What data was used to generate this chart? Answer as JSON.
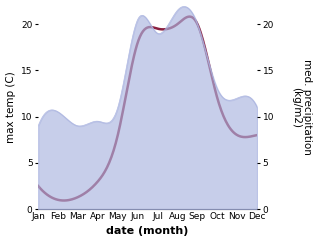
{
  "months": [
    "Jan",
    "Feb",
    "Mar",
    "Apr",
    "May",
    "Jun",
    "Jul",
    "Aug",
    "Sep",
    "Oct",
    "Nov",
    "Dec"
  ],
  "temperature": [
    2.5,
    1.0,
    1.3,
    3.0,
    8.0,
    18.0,
    19.5,
    20.0,
    20.0,
    12.0,
    8.0,
    8.0
  ],
  "precipitation": [
    9.0,
    10.5,
    9.0,
    9.5,
    11.0,
    20.5,
    19.0,
    21.5,
    20.0,
    13.0,
    12.0,
    11.0
  ],
  "temp_color": "#8B2040",
  "precip_color": "#aab4e0",
  "precip_fill_alpha": 0.65,
  "ylabel_left": "max temp (C)",
  "ylabel_right": "med. precipitation\n(kg/m2)",
  "xlabel": "date (month)",
  "ylim_left": [
    0,
    22
  ],
  "ylim_right": [
    0,
    22
  ],
  "yticks_left": [
    0,
    5,
    10,
    15,
    20
  ],
  "yticks_right": [
    0,
    5,
    10,
    15,
    20
  ],
  "bg_color": "#ffffff",
  "label_fontsize": 7.5,
  "tick_fontsize": 6.5,
  "xlabel_fontsize": 8,
  "linewidth": 1.8
}
